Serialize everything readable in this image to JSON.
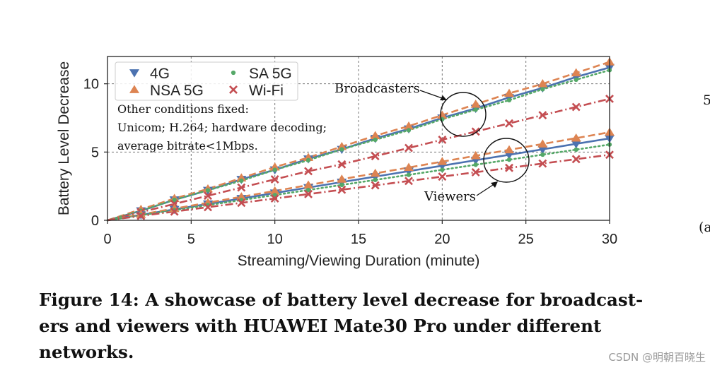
{
  "chart_data": {
    "type": "line",
    "title": "",
    "xlabel": "Streaming/Viewing Duration (minute)",
    "ylabel": "Battery Level Decrease",
    "xlim": [
      0,
      30
    ],
    "ylim": [
      0,
      12
    ],
    "xticks": [
      0,
      5,
      10,
      15,
      20,
      25,
      30
    ],
    "yticks": [
      0,
      5,
      10
    ],
    "grid": true,
    "legend_position": "top-left",
    "x": [
      0,
      2,
      4,
      6,
      8,
      10,
      12,
      14,
      16,
      18,
      20,
      22,
      24,
      26,
      28,
      30
    ],
    "series": [
      {
        "name": "4G",
        "group": "Broadcasters",
        "color": "#4c72b0",
        "marker": "triangle-down",
        "linestyle": "solid",
        "values": [
          0,
          0.7,
          1.5,
          2.2,
          3.0,
          3.7,
          4.5,
          5.2,
          6.0,
          6.7,
          7.5,
          8.2,
          9.0,
          9.7,
          10.5,
          11.2
        ]
      },
      {
        "name": "NSA 5G",
        "group": "Broadcasters",
        "color": "#dd8452",
        "marker": "triangle-up",
        "linestyle": "dashed",
        "values": [
          0,
          0.8,
          1.6,
          2.3,
          3.1,
          3.9,
          4.6,
          5.4,
          6.2,
          6.9,
          7.7,
          8.5,
          9.3,
          10.0,
          10.8,
          11.6
        ]
      },
      {
        "name": "SA 5G",
        "group": "Broadcasters",
        "color": "#55a868",
        "marker": "circle",
        "linestyle": "dotted",
        "values": [
          0,
          0.7,
          1.5,
          2.2,
          2.9,
          3.7,
          4.4,
          5.2,
          5.9,
          6.6,
          7.4,
          8.1,
          8.8,
          9.6,
          10.3,
          11.0
        ]
      },
      {
        "name": "Wi-Fi",
        "group": "Broadcasters",
        "color": "#c44e52",
        "marker": "x",
        "linestyle": "dashdot",
        "values": [
          0,
          0.6,
          1.2,
          1.8,
          2.4,
          3.0,
          3.6,
          4.1,
          4.7,
          5.3,
          5.9,
          6.5,
          7.1,
          7.7,
          8.3,
          8.9
        ]
      },
      {
        "name": "4G",
        "group": "Viewers",
        "color": "#4c72b0",
        "marker": "triangle-down",
        "linestyle": "solid",
        "values": [
          0,
          0.4,
          0.8,
          1.2,
          1.6,
          2.0,
          2.4,
          2.8,
          3.2,
          3.6,
          4.0,
          4.4,
          4.8,
          5.2,
          5.6,
          6.0
        ]
      },
      {
        "name": "NSA 5G",
        "group": "Viewers",
        "color": "#dd8452",
        "marker": "triangle-up",
        "linestyle": "dashed",
        "values": [
          0,
          0.43,
          0.86,
          1.29,
          1.72,
          2.15,
          2.58,
          3.01,
          3.44,
          3.87,
          4.3,
          4.73,
          5.16,
          5.59,
          6.02,
          6.45
        ]
      },
      {
        "name": "SA 5G",
        "group": "Viewers",
        "color": "#55a868",
        "marker": "circle",
        "linestyle": "dotted",
        "values": [
          0,
          0.37,
          0.74,
          1.11,
          1.48,
          1.85,
          2.22,
          2.59,
          2.96,
          3.33,
          3.7,
          4.07,
          4.44,
          4.81,
          5.18,
          5.55
        ]
      },
      {
        "name": "Wi-Fi",
        "group": "Viewers",
        "color": "#c44e52",
        "marker": "x",
        "linestyle": "dashdot",
        "values": [
          0,
          0.32,
          0.64,
          0.96,
          1.28,
          1.6,
          1.92,
          2.24,
          2.56,
          2.88,
          3.2,
          3.52,
          3.84,
          4.16,
          4.48,
          4.8
        ]
      }
    ],
    "legend": [
      "4G",
      "SA 5G",
      "NSA 5G",
      "Wi-Fi"
    ],
    "annotations": [
      {
        "label": "Broadcasters",
        "target_x": 22,
        "target_y": 7.7
      },
      {
        "label": "Viewers",
        "target_x": 24,
        "target_y": 4.5
      }
    ],
    "note_lines": [
      "Other conditions fixed:",
      "Unicom; H.264; hardware decoding;",
      "average bitrate<1Mbps."
    ]
  },
  "caption_lines": [
    "Figure 14: A showcase of battery level decrease for broadcast-",
    "ers and viewers with HUAWEI Mate30 Pro under different",
    "networks."
  ],
  "side_fragments": [
    "5",
    "(a"
  ],
  "watermark": "CSDN @明朝百晓生"
}
